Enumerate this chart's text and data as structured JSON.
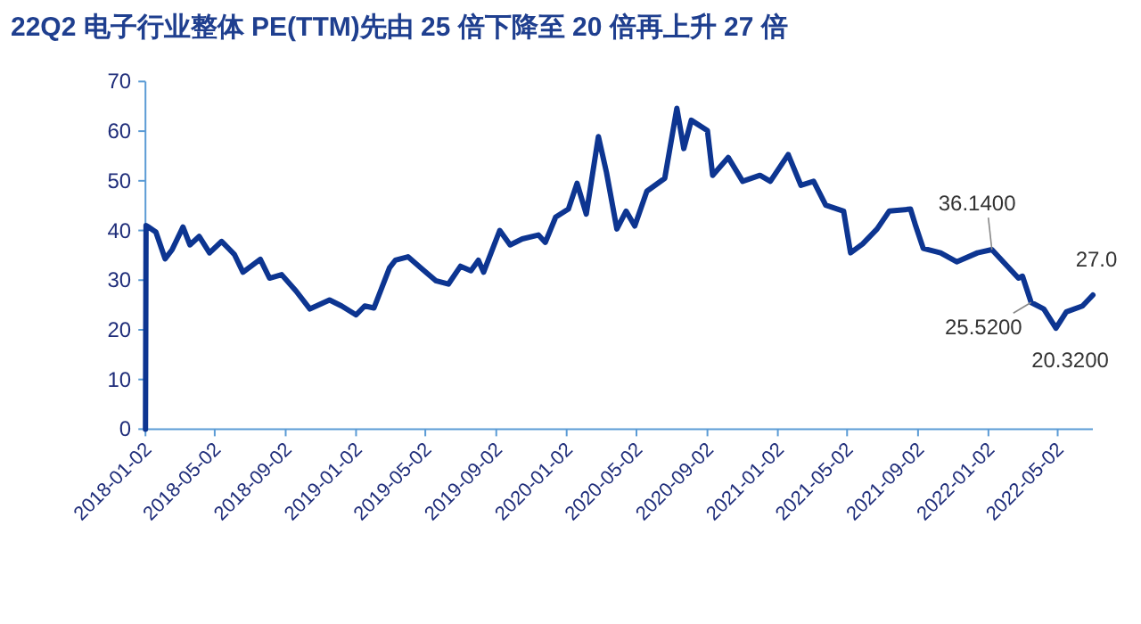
{
  "chart_data": {
    "type": "line",
    "title": "22Q2 电子行业整体 PE(TTM)先由 25 倍下降至 20 倍再上升 27 倍",
    "x": [
      "2018-01-02",
      "2018-01-03",
      "2018-01-07",
      "2018-01-20",
      "2018-02-05",
      "2018-02-17",
      "2018-03-08",
      "2018-03-20",
      "2018-04-05",
      "2018-04-23",
      "2018-05-14",
      "2018-06-05",
      "2018-06-20",
      "2018-07-20",
      "2018-08-05",
      "2018-08-26",
      "2018-09-20",
      "2018-10-14",
      "2018-11-17",
      "2018-12-08",
      "2019-01-02",
      "2019-01-17",
      "2019-02-02",
      "2019-03-01",
      "2019-03-11",
      "2019-04-02",
      "2019-04-26",
      "2019-05-20",
      "2019-06-11",
      "2019-07-02",
      "2019-07-20",
      "2019-08-02",
      "2019-08-11",
      "2019-09-08",
      "2019-09-26",
      "2019-10-17",
      "2019-11-14",
      "2019-11-26",
      "2019-12-14",
      "2020-01-05",
      "2020-01-20",
      "2020-02-05",
      "2020-02-26",
      "2020-03-11",
      "2020-03-29",
      "2020-04-14",
      "2020-04-29",
      "2020-05-20",
      "2020-06-20",
      "2020-07-11",
      "2020-07-23",
      "2020-08-05",
      "2020-09-02",
      "2020-09-11",
      "2020-10-08",
      "2020-11-02",
      "2020-12-02",
      "2020-12-20",
      "2021-01-20",
      "2021-02-11",
      "2021-03-05",
      "2021-03-26",
      "2021-04-26",
      "2021-05-08",
      "2021-05-29",
      "2021-06-23",
      "2021-07-14",
      "2021-08-20",
      "2021-08-29",
      "2021-09-11",
      "2021-10-11",
      "2021-11-08",
      "2021-12-14",
      "2022-01-08",
      "2022-02-23",
      "2022-03-02",
      "2022-03-17",
      "2022-04-08",
      "2022-04-29",
      "2022-05-17",
      "2022-06-14",
      "2022-07-02"
    ],
    "series": [
      {
        "color": "#0d3591",
        "values": [
          0,
          41.0,
          40.7,
          39.7,
          34.3,
          36.1,
          40.7,
          37.1,
          38.8,
          35.5,
          37.8,
          35.2,
          31.6,
          34.2,
          30.4,
          31.1,
          27.8,
          24.2,
          26.0,
          24.8,
          23.0,
          24.8,
          24.4,
          32.5,
          34.0,
          34.7,
          32.3,
          29.9,
          29.2,
          32.8,
          31.9,
          34.0,
          31.6,
          40.0,
          37.1,
          38.3,
          39.1,
          37.6,
          42.7,
          44.3,
          49.5,
          43.3,
          58.9,
          51.7,
          40.3,
          43.9,
          40.9,
          47.9,
          50.5,
          64.6,
          56.5,
          62.2,
          60.1,
          51.1,
          54.7,
          49.9,
          51.1,
          49.9,
          55.3,
          49.1,
          49.9,
          45.1,
          43.9,
          35.5,
          37.3,
          40.3,
          43.9,
          44.3,
          40.9,
          36.4,
          35.5,
          33.7,
          35.5,
          36.14,
          30.4,
          30.8,
          25.52,
          24.2,
          20.32,
          23.6,
          24.8,
          27.0
        ]
      }
    ],
    "xlim": [
      "2018-01-02",
      "2022-07-02"
    ],
    "xticks": [
      {
        "value": "2018-01-02",
        "label": "2018-01-02"
      },
      {
        "value": "2018-05-02",
        "label": "2018-05-02"
      },
      {
        "value": "2018-09-02",
        "label": "2018-09-02"
      },
      {
        "value": "2019-01-02",
        "label": "2019-01-02"
      },
      {
        "value": "2019-05-02",
        "label": "2019-05-02"
      },
      {
        "value": "2019-09-02",
        "label": "2019-09-02"
      },
      {
        "value": "2020-01-02",
        "label": "2020-01-02"
      },
      {
        "value": "2020-05-02",
        "label": "2020-05-02"
      },
      {
        "value": "2020-09-02",
        "label": "2020-09-02"
      },
      {
        "value": "2021-01-02",
        "label": "2021-01-02"
      },
      {
        "value": "2021-05-02",
        "label": "2021-05-02"
      },
      {
        "value": "2021-09-02",
        "label": "2021-09-02"
      },
      {
        "value": "2022-01-02",
        "label": "2022-01-02"
      },
      {
        "value": "2022-05-02",
        "label": "2022-05-02"
      }
    ],
    "ylim": [
      0,
      70
    ],
    "yticks": [
      0,
      10,
      20,
      30,
      40,
      50,
      60,
      70
    ],
    "grid": false,
    "marker": "none",
    "line_style": "solid",
    "annotations": [
      {
        "text": "36.1400",
        "x": "2022-01-08",
        "y": 36.14
      },
      {
        "text": "25.5200",
        "x": "2022-03-17",
        "y": 25.52
      },
      {
        "text": "20.3200",
        "x": "2022-04-29",
        "y": 20.32
      },
      {
        "text": "27.0",
        "x": "2022-07-02",
        "y": 27.0
      }
    ]
  }
}
